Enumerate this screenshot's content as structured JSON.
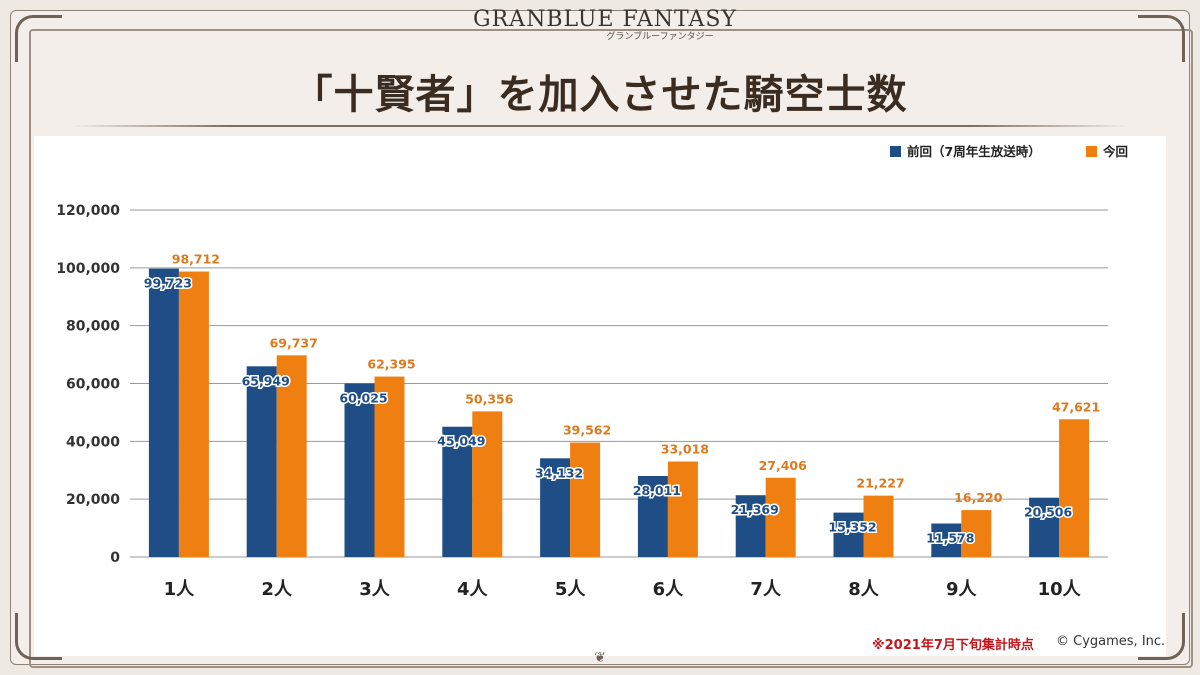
{
  "logo": {
    "main": "GRANBLUE FANTASY",
    "sub": "グランブルーファンタジー"
  },
  "page_title": "「十賢者」を加入させた騎空士数",
  "footer": {
    "note": "※2021年7月下旬集計時点",
    "copyright": "© Cygames, Inc."
  },
  "colors": {
    "previous": "#1f4e87",
    "current": "#f07f12",
    "current_label": "#dd7a1d",
    "grid": "#9a9a9a"
  },
  "chart_data": {
    "type": "bar",
    "title": "",
    "xlabel": "",
    "ylabel": "",
    "ylim": [
      0,
      120000
    ],
    "yticks": [
      0,
      20000,
      40000,
      60000,
      80000,
      100000,
      120000
    ],
    "ytick_labels": [
      "0",
      "20,000",
      "40,000",
      "60,000",
      "80,000",
      "100,000",
      "120,000"
    ],
    "grid": true,
    "legend_position": "top-right",
    "categories": [
      "1人",
      "2人",
      "3人",
      "4人",
      "5人",
      "6人",
      "7人",
      "8人",
      "9人",
      "10人"
    ],
    "series": [
      {
        "name": "前回（7周年生放送時）",
        "values": [
          99723,
          65949,
          60025,
          45049,
          34132,
          28011,
          21369,
          15352,
          11578,
          20506
        ],
        "labels": [
          "99,723",
          "65,949",
          "60,025",
          "45,049",
          "34,132",
          "28,011",
          "21,369",
          "15,352",
          "11,578",
          "20,506"
        ]
      },
      {
        "name": "今回",
        "values": [
          98712,
          69737,
          62395,
          50356,
          39562,
          33018,
          27406,
          21227,
          16220,
          47621
        ],
        "labels": [
          "98,712",
          "69,737",
          "62,395",
          "50,356",
          "39,562",
          "33,018",
          "27,406",
          "21,227",
          "16,220",
          "47,621"
        ]
      }
    ]
  }
}
